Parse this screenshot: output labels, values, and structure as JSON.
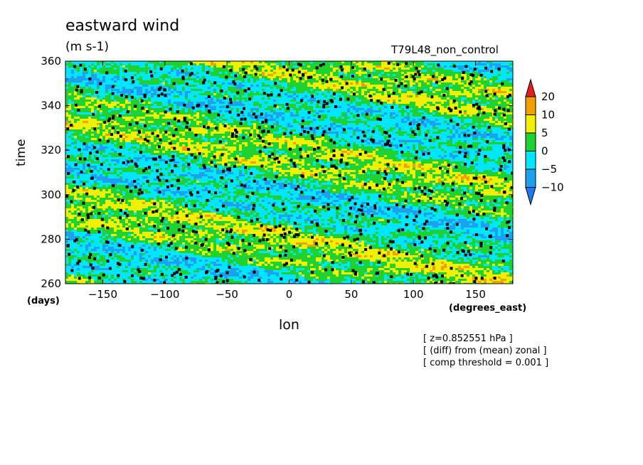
{
  "chart_data": {
    "type": "heatmap",
    "title": "eastward wind",
    "units": "(m s-1)",
    "run_label": "T79L48_non_control",
    "xlabel": "lon",
    "xunit": "(degrees_east)",
    "ylabel": "time",
    "yunit": "(days)",
    "xlim": [
      -180,
      180
    ],
    "ylim": [
      260,
      360
    ],
    "x_ticks": [
      -150,
      -100,
      -50,
      0,
      50,
      100,
      150
    ],
    "y_ticks": [
      260,
      280,
      300,
      320,
      340,
      360
    ],
    "x_tick_labels": [
      "−150",
      "−100",
      "−50",
      "0",
      "50",
      "100",
      "150"
    ],
    "y_tick_labels": [
      "260",
      "280",
      "300",
      "320",
      "340",
      "360"
    ],
    "colorbar": {
      "levels": [
        -10,
        -5,
        0,
        5,
        10,
        20
      ],
      "labels": [
        "−10",
        "−5",
        "0",
        "5",
        "10",
        "20"
      ],
      "colors": [
        "#1e78f0",
        "#1ea0f0",
        "#00e6ff",
        "#1ed232",
        "#f0f000",
        "#f0a000",
        "#e61e1e"
      ]
    },
    "significance_marker_color": "#000000",
    "annotations": [
      "[ z=0.852551 hPa ]",
      "[ (diff) from (mean) zonal ]",
      "[ comp threshold = 0.001 ]"
    ]
  }
}
